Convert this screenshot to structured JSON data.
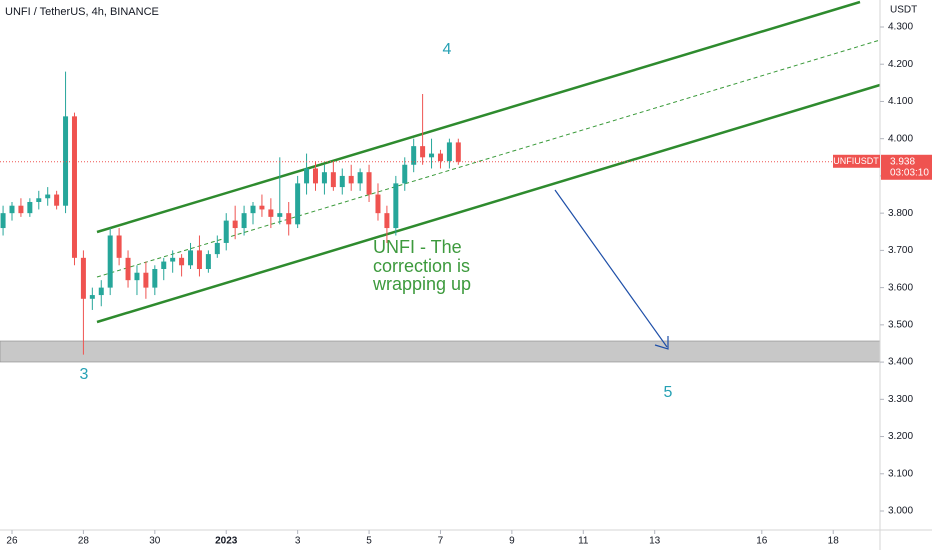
{
  "chart_data": {
    "type": "candlestick",
    "title": "UNFI / TetherUS, 4h, BINANCE",
    "y_unit": "USDT",
    "symbol": "UNFIUSDT",
    "last_price": 3.938,
    "countdown": "03:03:10",
    "up_color": "#26a69a",
    "down_color": "#ef5350",
    "ylim": [
      2.949,
      4.3725
    ],
    "yticks": [
      {
        "value": 3.0,
        "label": "3.000"
      },
      {
        "value": 3.1,
        "label": "3.100"
      },
      {
        "value": 3.2,
        "label": "3.200"
      },
      {
        "value": 3.3,
        "label": "3.300"
      },
      {
        "value": 3.4,
        "label": "3.400"
      },
      {
        "value": 3.5,
        "label": "3.500"
      },
      {
        "value": 3.6,
        "label": "3.600"
      },
      {
        "value": 3.7,
        "label": "3.700"
      },
      {
        "value": 3.8,
        "label": "3.800"
      },
      {
        "value": 3.9,
        "label": "3.900"
      },
      {
        "value": 4.0,
        "label": "4.000"
      },
      {
        "value": 4.1,
        "label": "4.100"
      },
      {
        "value": 4.2,
        "label": "4.200"
      },
      {
        "value": 4.3,
        "label": "4.300"
      }
    ],
    "xlim": [
      -0.336,
      24.31
    ],
    "xticks": [
      {
        "value": 0,
        "label": "26"
      },
      {
        "value": 2,
        "label": "28"
      },
      {
        "value": 4,
        "label": "30"
      },
      {
        "value": 6,
        "label": "2023"
      },
      {
        "value": 8,
        "label": "3"
      },
      {
        "value": 10,
        "label": "5"
      },
      {
        "value": 12,
        "label": "7"
      },
      {
        "value": 14,
        "label": "9"
      },
      {
        "value": 16,
        "label": "11"
      },
      {
        "value": 18,
        "label": "13"
      },
      {
        "value": 21,
        "label": "16"
      },
      {
        "value": 23,
        "label": "18"
      }
    ],
    "x": [
      -0.25,
      0,
      0.25,
      0.5,
      0.75,
      1,
      1.25,
      1.5,
      1.75,
      2,
      2.25,
      2.5,
      2.75,
      3,
      3.25,
      3.5,
      3.75,
      4,
      4.25,
      4.5,
      4.75,
      5,
      5.25,
      5.5,
      5.75,
      6,
      6.25,
      6.5,
      6.75,
      7,
      7.25,
      7.5,
      7.75,
      8,
      8.25,
      8.5,
      8.75,
      9,
      9.25,
      9.5,
      9.75,
      10,
      10.25,
      10.5,
      10.75,
      11,
      11.25,
      11.5,
      11.75,
      12,
      12.25,
      12.5
    ],
    "ohlc": [
      [
        3.76,
        3.82,
        3.74,
        3.8
      ],
      [
        3.8,
        3.83,
        3.78,
        3.82
      ],
      [
        3.82,
        3.84,
        3.79,
        3.8
      ],
      [
        3.8,
        3.84,
        3.79,
        3.83
      ],
      [
        3.83,
        3.86,
        3.81,
        3.84
      ],
      [
        3.84,
        3.87,
        3.82,
        3.85
      ],
      [
        3.85,
        3.86,
        3.81,
        3.82
      ],
      [
        3.82,
        4.18,
        3.8,
        4.06
      ],
      [
        4.06,
        4.07,
        3.66,
        3.68
      ],
      [
        3.68,
        3.7,
        3.42,
        3.57
      ],
      [
        3.57,
        3.6,
        3.54,
        3.58
      ],
      [
        3.58,
        3.62,
        3.55,
        3.6
      ],
      [
        3.6,
        3.76,
        3.58,
        3.74
      ],
      [
        3.74,
        3.76,
        3.66,
        3.68
      ],
      [
        3.68,
        3.7,
        3.6,
        3.62
      ],
      [
        3.62,
        3.66,
        3.58,
        3.64
      ],
      [
        3.64,
        3.67,
        3.57,
        3.6
      ],
      [
        3.6,
        3.66,
        3.58,
        3.65
      ],
      [
        3.65,
        3.68,
        3.62,
        3.67
      ],
      [
        3.67,
        3.7,
        3.64,
        3.68
      ],
      [
        3.68,
        3.69,
        3.63,
        3.66
      ],
      [
        3.66,
        3.72,
        3.65,
        3.7
      ],
      [
        3.7,
        3.74,
        3.63,
        3.65
      ],
      [
        3.65,
        3.7,
        3.64,
        3.69
      ],
      [
        3.69,
        3.74,
        3.68,
        3.72
      ],
      [
        3.72,
        3.8,
        3.7,
        3.78
      ],
      [
        3.78,
        3.82,
        3.73,
        3.76
      ],
      [
        3.76,
        3.82,
        3.74,
        3.8
      ],
      [
        3.8,
        3.83,
        3.77,
        3.82
      ],
      [
        3.82,
        3.85,
        3.79,
        3.81
      ],
      [
        3.81,
        3.84,
        3.76,
        3.79
      ],
      [
        3.79,
        3.95,
        3.77,
        3.8
      ],
      [
        3.8,
        3.83,
        3.74,
        3.77
      ],
      [
        3.77,
        3.9,
        3.76,
        3.88
      ],
      [
        3.88,
        3.96,
        3.85,
        3.92
      ],
      [
        3.92,
        3.94,
        3.86,
        3.88
      ],
      [
        3.88,
        3.93,
        3.85,
        3.91
      ],
      [
        3.91,
        3.94,
        3.86,
        3.87
      ],
      [
        3.87,
        3.92,
        3.85,
        3.9
      ],
      [
        3.9,
        3.93,
        3.86,
        3.88
      ],
      [
        3.88,
        3.92,
        3.86,
        3.91
      ],
      [
        3.91,
        3.93,
        3.83,
        3.85
      ],
      [
        3.85,
        3.88,
        3.78,
        3.8
      ],
      [
        3.8,
        3.82,
        3.72,
        3.76
      ],
      [
        3.76,
        3.9,
        3.74,
        3.88
      ],
      [
        3.88,
        3.95,
        3.86,
        3.93
      ],
      [
        3.93,
        4.0,
        3.91,
        3.98
      ],
      [
        3.98,
        4.12,
        3.93,
        3.95
      ],
      [
        3.95,
        4.0,
        3.92,
        3.96
      ],
      [
        3.96,
        3.97,
        3.92,
        3.94
      ],
      [
        3.94,
        4.0,
        3.92,
        3.99
      ],
      [
        3.99,
        4.0,
        3.93,
        3.938
      ]
    ],
    "annotations": {
      "wave_4": "4",
      "wave_3": "3",
      "wave_5": "5",
      "note": [
        "UNFI - The",
        "correction is",
        "wrapping up"
      ]
    }
  }
}
